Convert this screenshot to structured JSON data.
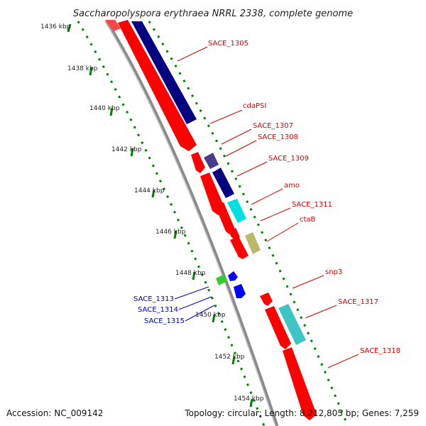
{
  "title": "Saccharopolyspora erythraea NRRL 2338, complete genome",
  "footer": {
    "accession": "Accession: NC_009142",
    "topology": "Topology: circular; Length: 8,212,805 bp; Genes: 7,259"
  },
  "colors": {
    "forward_cds": "#ff0000",
    "dark_blue": "#000080",
    "purple": "#483d8b",
    "cyan": "#00e0e0",
    "khaki": "#bdb76b",
    "green": "#32cd32",
    "blue": "#0000ff",
    "backbone": "#808080",
    "ticks": "#008000",
    "label_red": "#d40000",
    "label_blue": "#0000c0"
  },
  "kbp_ticks": [
    "1436 kbp",
    "1438 kbp",
    "1440 kbp",
    "1442 kbp",
    "1444 kbp",
    "1446 kbp",
    "1448 kbp",
    "1450 kbp",
    "1452 kbp",
    "1454 kbp"
  ],
  "gene_labels": [
    {
      "name": "SACE_1305",
      "color": "red"
    },
    {
      "name": "cdaPSI",
      "color": "red"
    },
    {
      "name": "SACE_1307",
      "color": "red"
    },
    {
      "name": "SACE_1308",
      "color": "red"
    },
    {
      "name": "SACE_1309",
      "color": "red"
    },
    {
      "name": "amo",
      "color": "red"
    },
    {
      "name": "SACE_1311",
      "color": "red"
    },
    {
      "name": "ctaB",
      "color": "red"
    },
    {
      "name": "snp3",
      "color": "red"
    },
    {
      "name": "SACE_1317",
      "color": "red"
    },
    {
      "name": "SACE_1318",
      "color": "red"
    },
    {
      "name": "SACE_1313",
      "color": "blue"
    },
    {
      "name": "SACE_1314",
      "color": "blue"
    },
    {
      "name": "SACE_1315",
      "color": "blue"
    }
  ]
}
